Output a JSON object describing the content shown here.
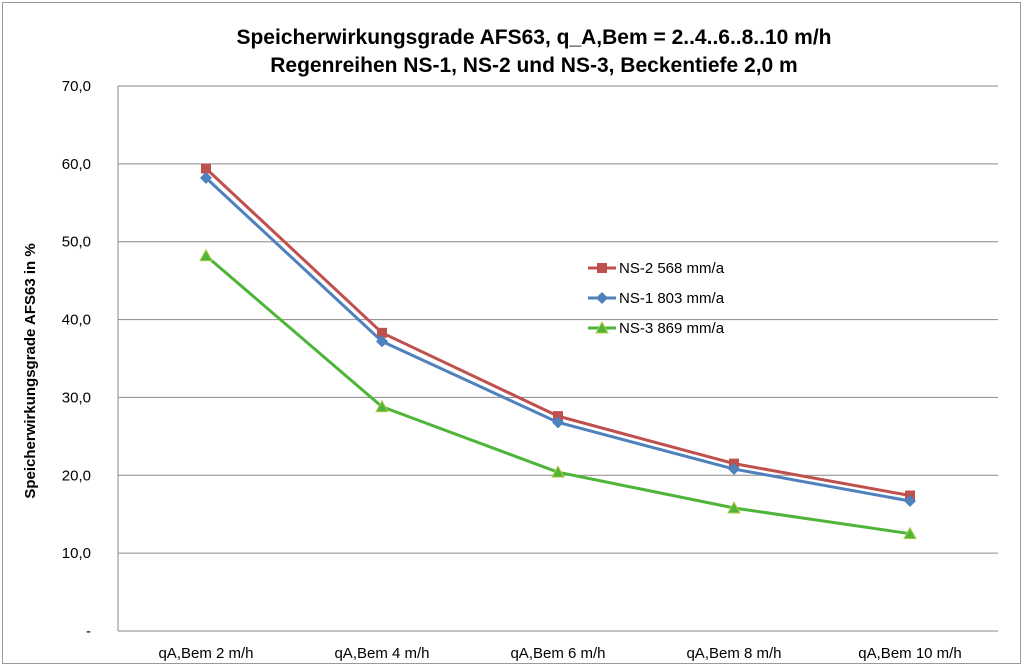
{
  "chart_data": {
    "type": "line",
    "title": "Speicherwirkungsgrade AFS63, q_A,Bem = 2..4..6..8..10 m/h",
    "subtitle": "Regenreihen NS-1, NS-2 und NS-3, Beckentiefe 2,0 m",
    "ylabel": "Speicherwirkungsgrade AFS63  in %",
    "xlabel": "",
    "ylim": [
      0,
      70
    ],
    "yticks": [
      {
        "value": 0,
        "label": "-"
      },
      {
        "value": 10,
        "label": "10,0"
      },
      {
        "value": 20,
        "label": "20,0"
      },
      {
        "value": 30,
        "label": "30,0"
      },
      {
        "value": 40,
        "label": "40,0"
      },
      {
        "value": 50,
        "label": "50,0"
      },
      {
        "value": 60,
        "label": "60,0"
      },
      {
        "value": 70,
        "label": "70,0"
      }
    ],
    "categories": [
      "qA,Bem 2 m/h",
      "qA,Bem 4 m/h",
      "qA,Bem 6 m/h",
      "qA,Bem 8 m/h",
      "qA,Bem 10 m/h"
    ],
    "grid": true,
    "legend_position": "center-right",
    "series": [
      {
        "name": "NS-2 568 mm/a",
        "color": "#C0504D",
        "marker": "square",
        "values": [
          59.4,
          38.3,
          27.6,
          21.5,
          17.4
        ]
      },
      {
        "name": "NS-1 803 mm/a",
        "color": "#4F81BD",
        "marker": "diamond",
        "values": [
          58.2,
          37.2,
          26.8,
          20.8,
          16.7
        ]
      },
      {
        "name": "NS-3 869 mm/a",
        "color": "#4EB538",
        "marker": "triangle",
        "values": [
          48.2,
          28.8,
          20.4,
          15.8,
          12.5
        ]
      }
    ]
  }
}
